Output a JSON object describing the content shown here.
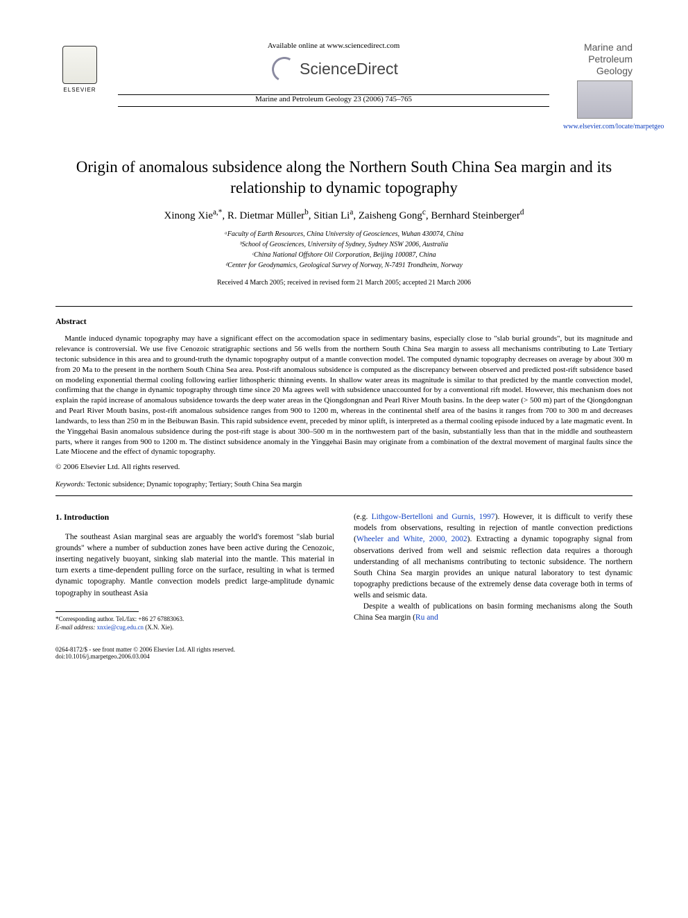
{
  "header": {
    "available_online": "Available online at www.sciencedirect.com",
    "sd_brand": "ScienceDirect",
    "journal_ref": "Marine and Petroleum Geology 23 (2006) 745–765",
    "elsevier": "ELSEVIER",
    "journal_name_line1": "Marine and",
    "journal_name_line2": "Petroleum Geology",
    "journal_link": "www.elsevier.com/locate/marpetgeo"
  },
  "title": "Origin of anomalous subsidence along the Northern South China Sea margin and its relationship to dynamic topography",
  "authors_html": "Xinong Xie<sup>a,*</sup>, R. Dietmar Müller<sup>b</sup>, Sitian Li<sup>a</sup>, Zaisheng Gong<sup>c</sup>, Bernhard Steinberger<sup>d</sup>",
  "affiliations": [
    "ᵃFaculty of Earth Resources, China University of Geosciences, Wuhan 430074, China",
    "ᵇSchool of Geosciences, University of Sydney, Sydney NSW 2006, Australia",
    "ᶜChina National Offshore Oil Corporation, Beijing 100087, China",
    "ᵈCenter for Geodynamics, Geological Survey of Norway, N-7491 Trondheim, Norway"
  ],
  "received": "Received 4 March 2005; received in revised form 21 March 2005; accepted 21 March 2006",
  "abstract": {
    "heading": "Abstract",
    "body": "Mantle induced dynamic topography may have a significant effect on the accomodation space in sedimentary basins, especially close to \"slab burial grounds\", but its magnitude and relevance is controversial. We use five Cenozoic stratigraphic sections and 56 wells from the northern South China Sea margin to assess all mechanisms contributing to Late Tertiary tectonic subsidence in this area and to ground-truth the dynamic topography output of a mantle convection model. The computed dynamic topography decreases on average by about 300 m from 20 Ma to the present in the northern South China Sea area. Post-rift anomalous subsidence is computed as the discrepancy between observed and predicted post-rift subsidence based on modeling exponential thermal cooling following earlier lithospheric thinning events. In shallow water areas its magnitude is similar to that predicted by the mantle convection model, confirming that the change in dynamic topography through time since 20 Ma agrees well with subsidence unaccounted for by a conventional rift model. However, this mechanism does not explain the rapid increase of anomalous subsidence towards the deep water areas in the Qiongdongnan and Pearl River Mouth basins. In the deep water (> 500 m) part of the Qiongdongnan and Pearl River Mouth basins, post-rift anomalous subsidence ranges from 900 to 1200 m, whereas in the continental shelf area of the basins it ranges from 700 to 300 m and decreases landwards, to less than 250 m in the Beibuwan Basin. This rapid subsidence event, preceded by minor uplift, is interpreted as a thermal cooling episode induced by a late magmatic event. In the Yinggehai Basin anomalous subsidence during the post-rift stage is about 300–500 m in the northwestern part of the basin, substantially less than that in the middle and southeastern parts, where it ranges from 900 to 1200 m. The distinct subsidence anomaly in the Yinggehai Basin may originate from a combination of the dextral movement of marginal faults since the Late Miocene and the effect of dynamic topography.",
    "copyright": "© 2006 Elsevier Ltd. All rights reserved."
  },
  "keywords": {
    "label": "Keywords:",
    "text": " Tectonic subsidence; Dynamic topography; Tertiary; South China Sea margin"
  },
  "section1": {
    "heading": "1. Introduction",
    "col1_p1": "The southeast Asian marginal seas are arguably the world's foremost \"slab burial grounds\" where a number of subduction zones have been active during the Cenozoic, inserting negatively buoyant, sinking slab material into the mantle. This material in turn exerts a time-dependent pulling force on the surface, resulting in what is termed dynamic topography. Mantle convection models predict large-amplitude dynamic topography in southeast Asia",
    "col2_p1_pre": "(e.g. ",
    "col2_p1_link1": "Lithgow-Bertelloni and Gurnis, 1997",
    "col2_p1_mid1": "). However, it is difficult to verify these models from observations, resulting in rejection of mantle convection predictions (",
    "col2_p1_link2": "Wheeler and White, 2000, 2002",
    "col2_p1_mid2": "). Extracting a dynamic topography signal from observations derived from well and seismic reflection data requires a thorough understanding of all mechanisms contributing to tectonic subsidence. The northern South China Sea margin provides an unique natural laboratory to test dynamic topography predictions because of the extremely dense data coverage both in terms of wells and seismic data.",
    "col2_p2_pre": "Despite a wealth of publications on basin forming mechanisms along the South China Sea margin (",
    "col2_p2_link": "Ru and"
  },
  "footnote": {
    "corr": "*Corresponding author. Tel./fax: +86 27 67883063.",
    "email_label": "E-mail address: ",
    "email": "xnxie@cug.edu.cn",
    "email_tail": " (X.N. Xie)."
  },
  "footer": {
    "line1": "0264-8172/$ - see front matter © 2006 Elsevier Ltd. All rights reserved.",
    "line2": "doi:10.1016/j.marpetgeo.2006.03.004"
  },
  "colors": {
    "link": "#1040c0",
    "text": "#000000",
    "bg": "#ffffff"
  }
}
